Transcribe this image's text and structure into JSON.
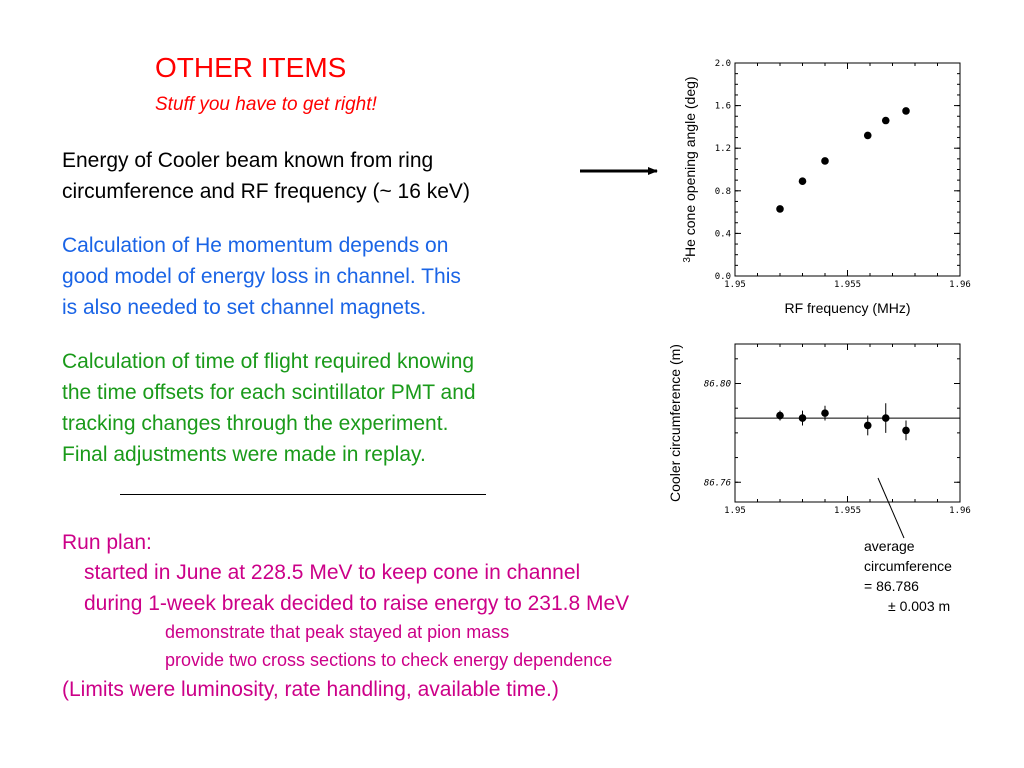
{
  "slide": {
    "title": "OTHER  ITEMS",
    "subtitle": "Stuff you have to get right!",
    "p1": [
      "Energy of Cooler beam known from ring",
      "circumference and RF frequency (~ 16 keV)"
    ],
    "p2": [
      "Calculation of He momentum depends on",
      "good model of energy loss in channel.  This",
      "is also needed to set channel magnets."
    ],
    "p3": [
      "Calculation of time of flight required knowing",
      "the time offsets for each scintillator PMT and",
      "tracking changes through the experiment.",
      "Final adjustments were made in replay."
    ],
    "run_plan": {
      "heading": "Run plan:",
      "item1": "started in June at 228.5 MeV to keep cone in channel",
      "item2": "during 1-week break decided to raise energy to 231.8 MeV",
      "sub1": "demonstrate that peak stayed at pion mass",
      "sub2": "provide two cross sections to check energy dependence",
      "note": "(Limits were luminosity, rate handling, available time.)"
    },
    "average_note": [
      "average",
      "circumference",
      "= 86.786",
      "± 0.003 m"
    ],
    "colors": {
      "title": "#ff0000",
      "blue": "#1a64e6",
      "green": "#1a9a1a",
      "magenta": "#cc0088"
    }
  },
  "chart_data": [
    {
      "type": "scatter",
      "ylabel_sup": "3",
      "ylabel": "He cone opening angle (deg)",
      "xlabel": "RF  frequency  (MHz)",
      "xlim": [
        1.95,
        1.96
      ],
      "ylim": [
        0.0,
        2.0
      ],
      "xticks": [
        "1.95",
        "1.955",
        "1.96"
      ],
      "yticks": [
        "0.0",
        "0.4",
        "0.8",
        "1.2",
        "1.6",
        "2.0"
      ],
      "x": [
        1.952,
        1.953,
        1.954,
        1.9559,
        1.9567,
        1.9576
      ],
      "y": [
        0.63,
        0.89,
        1.08,
        1.32,
        1.46,
        1.55
      ]
    },
    {
      "type": "scatter",
      "ylabel": "Cooler circumference (m)",
      "xlim": [
        1.95,
        1.96
      ],
      "ylim": [
        86.752,
        86.816
      ],
      "xticks": [
        "1.95",
        "1.955",
        "1.96"
      ],
      "yticks": [
        "86.76",
        "86.80"
      ],
      "x": [
        1.952,
        1.953,
        1.954,
        1.9559,
        1.9567,
        1.9576
      ],
      "y": [
        86.787,
        86.786,
        86.788,
        86.783,
        86.786,
        86.781
      ],
      "yerr": [
        0.002,
        0.003,
        0.003,
        0.004,
        0.006,
        0.004
      ],
      "hline": 86.786
    }
  ]
}
